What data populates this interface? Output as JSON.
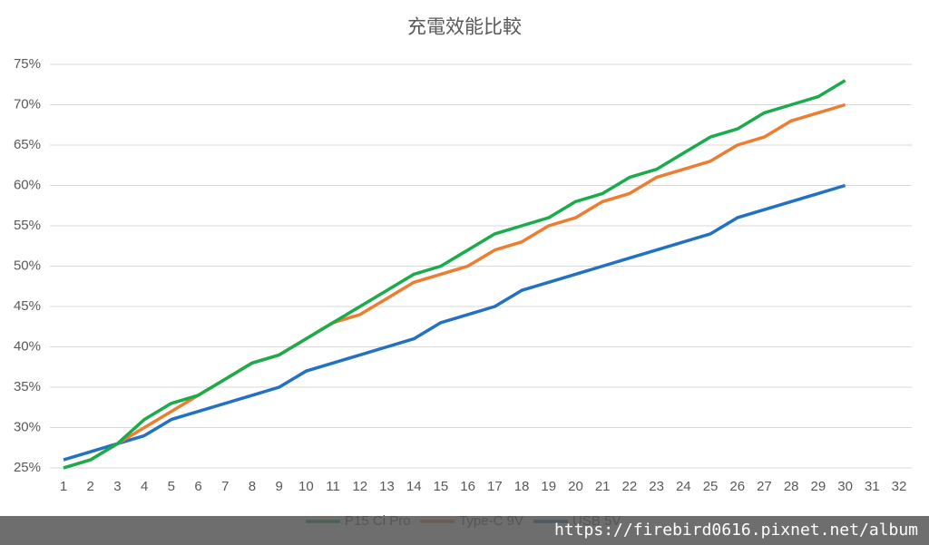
{
  "chart_data": {
    "type": "line",
    "title": "充電效能比較",
    "categories": [
      "1",
      "2",
      "3",
      "4",
      "5",
      "6",
      "7",
      "8",
      "9",
      "10",
      "11",
      "12",
      "13",
      "14",
      "15",
      "16",
      "17",
      "18",
      "19",
      "20",
      "21",
      "22",
      "23",
      "24",
      "25",
      "26",
      "27",
      "28",
      "29",
      "30",
      "31",
      "32"
    ],
    "series": [
      {
        "name": "P15 Ci Pro",
        "color": "#1aab4b",
        "values": [
          25,
          26,
          28,
          31,
          33,
          34,
          36,
          38,
          39,
          41,
          43,
          45,
          47,
          49,
          50,
          52,
          54,
          55,
          56,
          58,
          59,
          61,
          62,
          64,
          66,
          67,
          69,
          70,
          71,
          73,
          null,
          null
        ]
      },
      {
        "name": "Type-C 9V",
        "color": "#ed7d31",
        "values": [
          25,
          26,
          28,
          30,
          32,
          34,
          36,
          38,
          39,
          41,
          43,
          44,
          46,
          48,
          49,
          50,
          52,
          53,
          55,
          56,
          58,
          59,
          61,
          62,
          63,
          65,
          66,
          68,
          69,
          70,
          null,
          null
        ]
      },
      {
        "name": "USB 5V",
        "color": "#2271c2",
        "values": [
          26,
          27,
          28,
          29,
          31,
          32,
          33,
          34,
          35,
          37,
          38,
          39,
          40,
          41,
          43,
          44,
          45,
          47,
          48,
          49,
          50,
          51,
          52,
          53,
          54,
          56,
          57,
          58,
          59,
          60,
          null,
          null
        ]
      }
    ],
    "ylim": [
      25,
      75
    ],
    "yticks": [
      {
        "value": 25,
        "label": "25%"
      },
      {
        "value": 30,
        "label": "30%"
      },
      {
        "value": 35,
        "label": "35%"
      },
      {
        "value": 40,
        "label": "40%"
      },
      {
        "value": 45,
        "label": "45%"
      },
      {
        "value": 50,
        "label": "50%"
      },
      {
        "value": 55,
        "label": "55%"
      },
      {
        "value": 60,
        "label": "60%"
      },
      {
        "value": 65,
        "label": "65%"
      },
      {
        "value": 70,
        "label": "70%"
      },
      {
        "value": 75,
        "label": "75%"
      }
    ],
    "grid": true,
    "legend": "bottom"
  },
  "watermark": "https://firebird0616.pixnet.net/album"
}
